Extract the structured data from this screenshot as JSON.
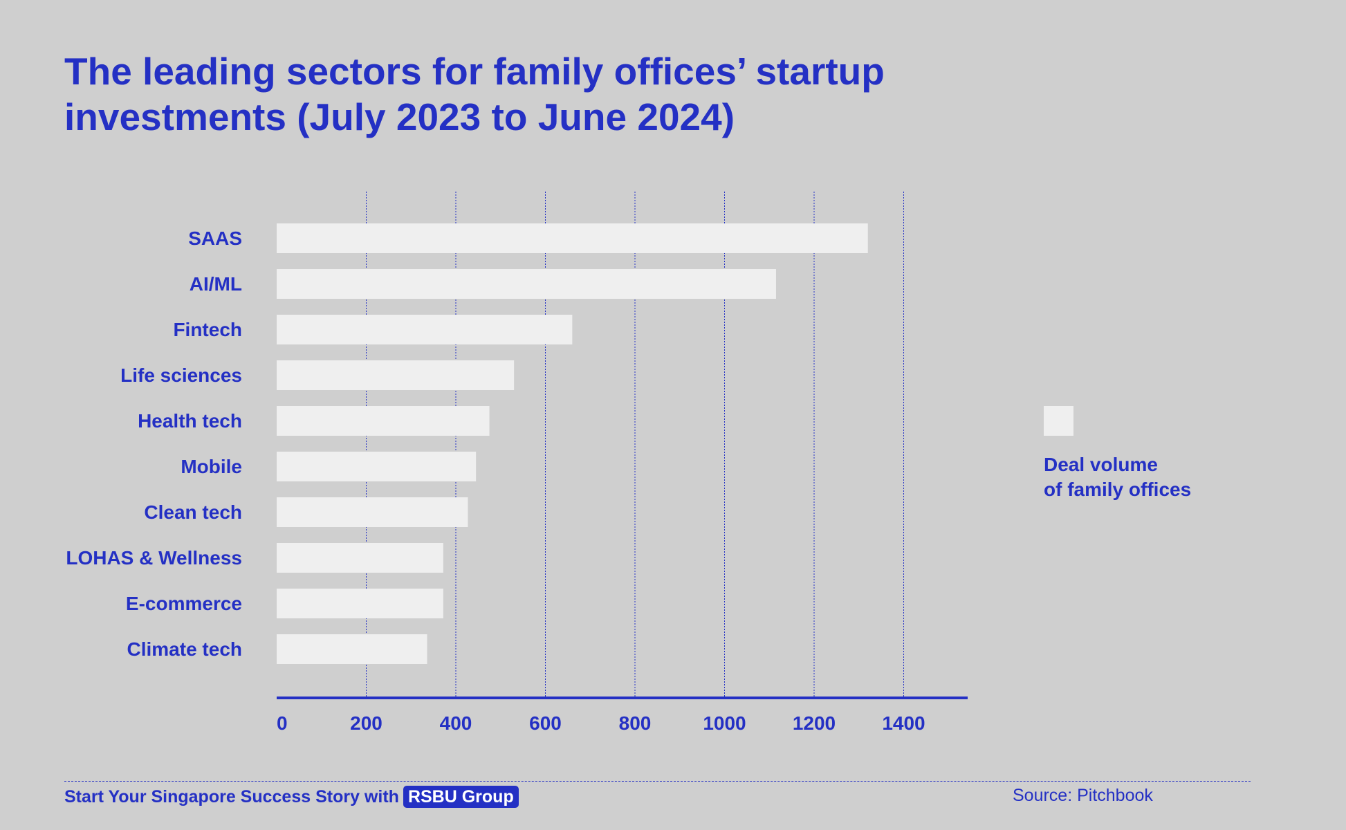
{
  "title": {
    "line1": "The leading sectors for family offices’ startup",
    "line2": "investments (July 2023 to June 2024)"
  },
  "chart_data": {
    "type": "bar",
    "orientation": "horizontal",
    "categories": [
      "SAAS",
      "AI/ML",
      "Fintech",
      "Life sciences",
      "Health tech",
      "Mobile",
      "Clean tech",
      "LOHAS & Wellness",
      "E-commerce",
      "Climate tech"
    ],
    "series": [
      {
        "name": "Deal volume of family offices",
        "values": [
          1320,
          1115,
          660,
          530,
          475,
          445,
          427,
          372,
          372,
          336
        ]
      }
    ],
    "xticks": [
      "0",
      "200",
      "400",
      "600",
      "800",
      "1000",
      "1200",
      "1400"
    ],
    "xlim": [
      0,
      1520
    ],
    "grid": "vertical dotted",
    "legend_position": "right",
    "colors": {
      "bar": "#efefef",
      "text": "#2430c4",
      "grid": "#2430c4",
      "background": "#cfcfcf"
    }
  },
  "legend": {
    "line1": "Deal volume",
    "line2": "of family offices"
  },
  "footer": {
    "tagline": "Start Your Singapore Success Story with",
    "brand": "RSBU Group",
    "source": "Source: Pitchbook"
  }
}
